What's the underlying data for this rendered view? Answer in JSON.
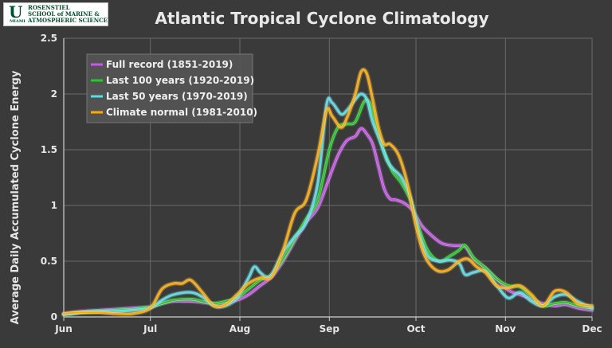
{
  "logo": {
    "letter": "U",
    "sub": "MIAMI",
    "text": "ROSENSTIEL\nSCHOOL of MARINE &\nATMOSPHERIC SCIENCE"
  },
  "chart_data": {
    "type": "line",
    "title": "Atlantic Tropical Cyclone Climatology",
    "xlabel": "",
    "ylabel": "Average Daily Accumulated Cyclone Energy",
    "xlim": [
      0,
      183
    ],
    "ylim": [
      0,
      2.5
    ],
    "xticks": [
      {
        "label": "Jun",
        "day": 0
      },
      {
        "label": "Jul",
        "day": 30
      },
      {
        "label": "Aug",
        "day": 61
      },
      {
        "label": "Sep",
        "day": 92
      },
      {
        "label": "Oct",
        "day": 122
      },
      {
        "label": "Nov",
        "day": 153
      },
      {
        "label": "Dec",
        "day": 183
      }
    ],
    "yticks": [
      0,
      0.5,
      1,
      1.5,
      2,
      2.5
    ],
    "ytick_labels": [
      "0",
      "0.5",
      "1",
      "1.5",
      "2",
      "2.5"
    ],
    "grid": true,
    "legend_position": "top-left",
    "series": [
      {
        "name": "Full record (1851-2019)",
        "color": "#cc55ee",
        "points": [
          [
            0,
            0.03
          ],
          [
            6,
            0.05
          ],
          [
            12,
            0.06
          ],
          [
            18,
            0.07
          ],
          [
            24,
            0.08
          ],
          [
            30,
            0.09
          ],
          [
            34,
            0.12
          ],
          [
            38,
            0.14
          ],
          [
            44,
            0.14
          ],
          [
            48,
            0.13
          ],
          [
            52,
            0.12
          ],
          [
            56,
            0.13
          ],
          [
            60,
            0.15
          ],
          [
            64,
            0.2
          ],
          [
            68,
            0.28
          ],
          [
            72,
            0.36
          ],
          [
            76,
            0.5
          ],
          [
            80,
            0.68
          ],
          [
            84,
            0.85
          ],
          [
            88,
            0.98
          ],
          [
            92,
            1.25
          ],
          [
            95,
            1.45
          ],
          [
            98,
            1.58
          ],
          [
            101,
            1.62
          ],
          [
            103,
            1.69
          ],
          [
            105,
            1.64
          ],
          [
            107,
            1.55
          ],
          [
            109,
            1.35
          ],
          [
            111,
            1.15
          ],
          [
            113,
            1.06
          ],
          [
            115,
            1.05
          ],
          [
            118,
            1.02
          ],
          [
            121,
            0.95
          ],
          [
            124,
            0.82
          ],
          [
            127,
            0.74
          ],
          [
            131,
            0.66
          ],
          [
            135,
            0.64
          ],
          [
            139,
            0.63
          ],
          [
            142,
            0.52
          ],
          [
            146,
            0.44
          ],
          [
            150,
            0.34
          ],
          [
            154,
            0.24
          ],
          [
            158,
            0.2
          ],
          [
            162,
            0.16
          ],
          [
            166,
            0.12
          ],
          [
            170,
            0.1
          ],
          [
            174,
            0.11
          ],
          [
            178,
            0.08
          ],
          [
            183,
            0.06
          ]
        ]
      },
      {
        "name": "Last 100 years (1920-2019)",
        "color": "#22cc22",
        "points": [
          [
            0,
            0.02
          ],
          [
            6,
            0.04
          ],
          [
            12,
            0.05
          ],
          [
            18,
            0.06
          ],
          [
            24,
            0.07
          ],
          [
            30,
            0.09
          ],
          [
            34,
            0.12
          ],
          [
            38,
            0.15
          ],
          [
            44,
            0.16
          ],
          [
            48,
            0.14
          ],
          [
            52,
            0.12
          ],
          [
            56,
            0.14
          ],
          [
            60,
            0.17
          ],
          [
            64,
            0.25
          ],
          [
            68,
            0.33
          ],
          [
            72,
            0.38
          ],
          [
            76,
            0.52
          ],
          [
            80,
            0.7
          ],
          [
            84,
            0.88
          ],
          [
            88,
            1.05
          ],
          [
            92,
            1.5
          ],
          [
            95,
            1.7
          ],
          [
            98,
            1.73
          ],
          [
            101,
            1.75
          ],
          [
            104,
            1.93
          ],
          [
            106,
            1.92
          ],
          [
            108,
            1.75
          ],
          [
            110,
            1.55
          ],
          [
            112,
            1.42
          ],
          [
            114,
            1.3
          ],
          [
            117,
            1.2
          ],
          [
            120,
            1.05
          ],
          [
            123,
            0.8
          ],
          [
            126,
            0.6
          ],
          [
            130,
            0.5
          ],
          [
            134,
            0.55
          ],
          [
            137,
            0.6
          ],
          [
            139,
            0.64
          ],
          [
            142,
            0.53
          ],
          [
            146,
            0.44
          ],
          [
            150,
            0.34
          ],
          [
            154,
            0.28
          ],
          [
            158,
            0.27
          ],
          [
            162,
            0.18
          ],
          [
            166,
            0.1
          ],
          [
            170,
            0.12
          ],
          [
            174,
            0.13
          ],
          [
            178,
            0.1
          ],
          [
            183,
            0.08
          ]
        ]
      },
      {
        "name": "Last 50 years (1970-2019)",
        "color": "#55dde8",
        "points": [
          [
            0,
            0.02
          ],
          [
            6,
            0.04
          ],
          [
            12,
            0.05
          ],
          [
            18,
            0.05
          ],
          [
            24,
            0.06
          ],
          [
            30,
            0.08
          ],
          [
            34,
            0.15
          ],
          [
            38,
            0.2
          ],
          [
            44,
            0.22
          ],
          [
            48,
            0.18
          ],
          [
            52,
            0.1
          ],
          [
            56,
            0.1
          ],
          [
            60,
            0.17
          ],
          [
            64,
            0.35
          ],
          [
            66,
            0.45
          ],
          [
            68,
            0.4
          ],
          [
            70,
            0.36
          ],
          [
            72,
            0.38
          ],
          [
            76,
            0.58
          ],
          [
            80,
            0.72
          ],
          [
            84,
            0.85
          ],
          [
            88,
            1.2
          ],
          [
            91,
            1.9
          ],
          [
            93,
            1.92
          ],
          [
            96,
            1.82
          ],
          [
            98,
            1.85
          ],
          [
            101,
            1.95
          ],
          [
            103,
            2.0
          ],
          [
            105,
            1.95
          ],
          [
            107,
            1.75
          ],
          [
            110,
            1.55
          ],
          [
            112,
            1.4
          ],
          [
            114,
            1.33
          ],
          [
            117,
            1.25
          ],
          [
            120,
            1.08
          ],
          [
            123,
            0.76
          ],
          [
            126,
            0.55
          ],
          [
            130,
            0.5
          ],
          [
            134,
            0.51
          ],
          [
            137,
            0.48
          ],
          [
            139,
            0.38
          ],
          [
            142,
            0.4
          ],
          [
            146,
            0.41
          ],
          [
            150,
            0.28
          ],
          [
            154,
            0.17
          ],
          [
            158,
            0.22
          ],
          [
            162,
            0.14
          ],
          [
            166,
            0.1
          ],
          [
            170,
            0.18
          ],
          [
            174,
            0.2
          ],
          [
            178,
            0.14
          ],
          [
            183,
            0.08
          ]
        ]
      },
      {
        "name": "Climate normal (1981-2010)",
        "color": "#ffaa00",
        "points": [
          [
            0,
            0.03
          ],
          [
            6,
            0.04
          ],
          [
            12,
            0.04
          ],
          [
            18,
            0.03
          ],
          [
            24,
            0.03
          ],
          [
            30,
            0.08
          ],
          [
            34,
            0.25
          ],
          [
            38,
            0.3
          ],
          [
            41,
            0.3
          ],
          [
            44,
            0.33
          ],
          [
            48,
            0.22
          ],
          [
            52,
            0.1
          ],
          [
            56,
            0.11
          ],
          [
            60,
            0.2
          ],
          [
            64,
            0.3
          ],
          [
            68,
            0.35
          ],
          [
            72,
            0.36
          ],
          [
            76,
            0.6
          ],
          [
            80,
            0.93
          ],
          [
            84,
            1.05
          ],
          [
            88,
            1.45
          ],
          [
            91,
            1.85
          ],
          [
            93,
            1.8
          ],
          [
            96,
            1.7
          ],
          [
            98,
            1.78
          ],
          [
            101,
            2.0
          ],
          [
            103,
            2.2
          ],
          [
            105,
            2.18
          ],
          [
            107,
            1.95
          ],
          [
            109,
            1.7
          ],
          [
            111,
            1.55
          ],
          [
            113,
            1.55
          ],
          [
            116,
            1.45
          ],
          [
            119,
            1.2
          ],
          [
            122,
            0.82
          ],
          [
            125,
            0.55
          ],
          [
            129,
            0.42
          ],
          [
            133,
            0.42
          ],
          [
            137,
            0.5
          ],
          [
            140,
            0.52
          ],
          [
            143,
            0.45
          ],
          [
            146,
            0.4
          ],
          [
            150,
            0.28
          ],
          [
            154,
            0.26
          ],
          [
            158,
            0.28
          ],
          [
            162,
            0.2
          ],
          [
            166,
            0.1
          ],
          [
            170,
            0.23
          ],
          [
            174,
            0.22
          ],
          [
            178,
            0.12
          ],
          [
            183,
            0.1
          ]
        ]
      }
    ]
  }
}
